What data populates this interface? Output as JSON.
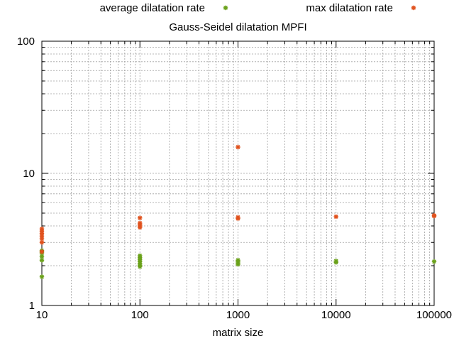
{
  "chart_data": {
    "type": "scatter",
    "title": "Gauss-Seidel dilatation MPFI",
    "xlabel": "matrix size",
    "ylabel": "",
    "xscale": "log",
    "yscale": "log",
    "xlim": [
      10,
      100000
    ],
    "ylim": [
      1,
      100
    ],
    "grid": true,
    "legend_position": "top",
    "x_tick_labels": [
      "10",
      "100",
      "1000",
      "10000",
      "100000"
    ],
    "y_tick_labels": [
      "1",
      "10",
      "100"
    ],
    "series": [
      {
        "name": "average dilatation rate",
        "color": "#6aa11a",
        "marker": "star",
        "points": [
          [
            10,
            1.65
          ],
          [
            10,
            2.2
          ],
          [
            10,
            2.35
          ],
          [
            10,
            2.5
          ],
          [
            10,
            2.6
          ],
          [
            100,
            1.97
          ],
          [
            100,
            2.02
          ],
          [
            100,
            2.08
          ],
          [
            100,
            2.15
          ],
          [
            100,
            2.22
          ],
          [
            100,
            2.3
          ],
          [
            100,
            2.38
          ],
          [
            1000,
            2.05
          ],
          [
            1000,
            2.1
          ],
          [
            1000,
            2.15
          ],
          [
            1000,
            2.2
          ],
          [
            10000,
            2.12
          ],
          [
            10000,
            2.17
          ],
          [
            100000,
            2.15
          ]
        ]
      },
      {
        "name": "max dilatation rate",
        "color": "#e0521e",
        "marker": "star",
        "points": [
          [
            10,
            2.55
          ],
          [
            10,
            3.0
          ],
          [
            10,
            3.2
          ],
          [
            10,
            3.35
          ],
          [
            10,
            3.5
          ],
          [
            10,
            3.65
          ],
          [
            10,
            3.8
          ],
          [
            100,
            3.9
          ],
          [
            100,
            4.0
          ],
          [
            100,
            4.1
          ],
          [
            100,
            4.2
          ],
          [
            100,
            4.6
          ],
          [
            1000,
            4.55
          ],
          [
            1000,
            4.65
          ],
          [
            1000,
            15.8
          ],
          [
            10000,
            4.7
          ],
          [
            100000,
            4.75
          ],
          [
            100000,
            4.8
          ]
        ]
      }
    ]
  }
}
